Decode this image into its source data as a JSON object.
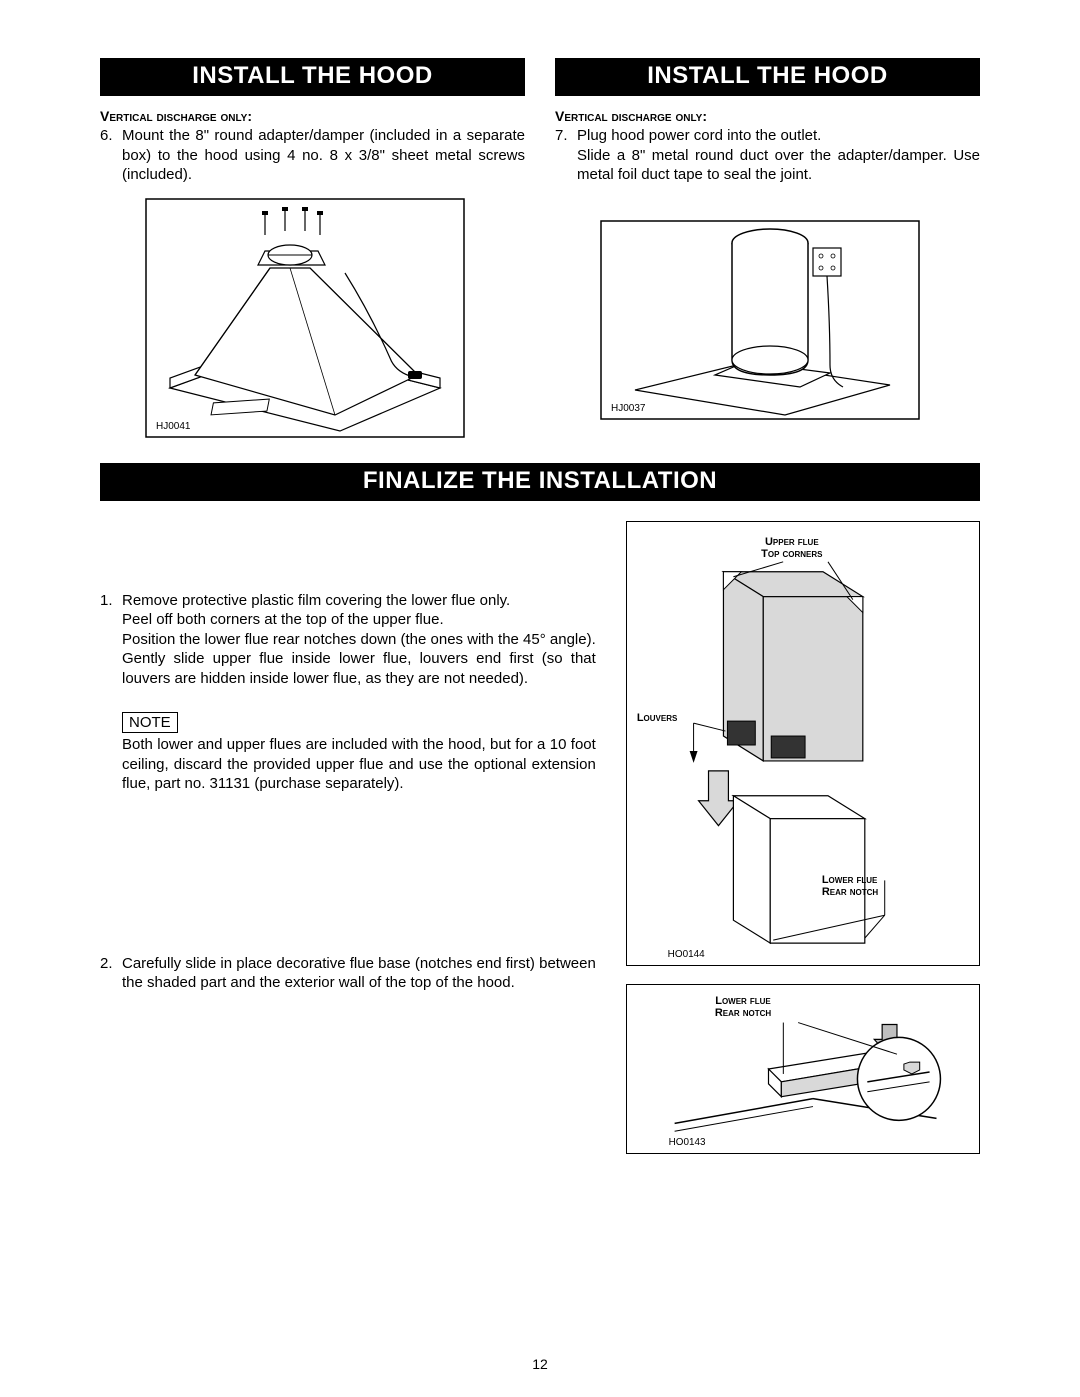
{
  "left": {
    "banner": "INSTALL THE HOOD",
    "subhead": "Vertical discharge only:",
    "item_num": "6.",
    "item_text": "Mount the 8\" round adapter/damper (included in a separate box) to the hood using 4 no. 8 x 3/8\" sheet metal screws (included).",
    "fig_caption": "HJ0041"
  },
  "right": {
    "banner": "INSTALL THE HOOD",
    "subhead": "Vertical discharge only:",
    "item_num": "7.",
    "item_text_a": "Plug hood power cord into the outlet.",
    "item_text_b": "Slide a 8\" metal round duct over the adapter/damper. Use metal foil duct tape to seal the joint.",
    "fig_caption": "HJ0037"
  },
  "finalize": {
    "banner": "FINALIZE THE INSTALLATION",
    "s1": {
      "num": "1.",
      "line1": "Remove protective plastic film covering the lower flue only.",
      "line2": "Peel off both corners at the top of the upper flue.",
      "line3": "Position the lower flue rear notches down (the ones with the 45° angle).",
      "line4": "Gently slide upper flue inside lower flue, louvers end first (so that louvers are hidden inside lower flue, as they are not needed)."
    },
    "note_label": "NOTE",
    "note_body": "Both lower and upper flues are included with the hood, but for a 10 foot ceiling, discard the provided upper flue and use the optional extension flue, part no. 31131 (purchase separately).",
    "s2": {
      "num": "2.",
      "text": "Carefully slide in place decorative flue base (notches end first) between the shaded part and the exterior wall of the top of the hood."
    },
    "fig1": {
      "caption": "HO0144",
      "label_top": "Upper flue\ntop corners",
      "label_louvers": "Louvers",
      "label_lower": "Lower flue\nrear notch"
    },
    "fig2": {
      "caption": "HO0143",
      "label": "Lower flue\nrear notch"
    }
  },
  "page_number": "12",
  "colors": {
    "banner_bg": "#000000",
    "banner_fg": "#ffffff",
    "line": "#000000",
    "flue_fill": "#d9d9d9",
    "hood_fill": "#f2f2f2"
  }
}
